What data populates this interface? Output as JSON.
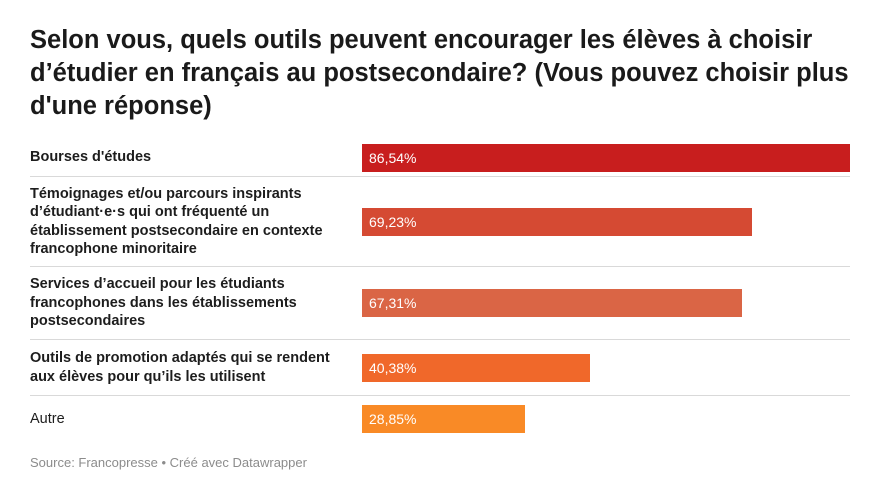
{
  "title": "Selon vous, quels outils peuvent encourager les élèves à choisir d’étudier en français au postsecondaire? (Vous pouvez choisir plus d'une réponse)",
  "footer": "Source: Francopresse • Créé avec Datawrapper",
  "chart_data": {
    "type": "bar",
    "orientation": "horizontal",
    "title": "Selon vous, quels outils peuvent encourager les élèves à choisir d’étudier en français au postsecondaire? (Vous pouvez choisir plus d'une réponse)",
    "categories": [
      "Bourses d'études",
      "Témoignages et/ou parcours inspirants d’étudiant·e·s qui ont fréquenté un établissement postsecondaire en contexte francophone minoritaire",
      "Services d’accueil pour les étudiants francophones dans les établissements postsecondaires",
      "Outils de promotion adaptés qui se rendent aux élèves pour qu’ils les utilisent",
      "Autre"
    ],
    "values": [
      86.54,
      69.23,
      67.31,
      40.38,
      28.85
    ],
    "value_labels": [
      "86,54%",
      "69,23%",
      "67,31%",
      "40,38%",
      "28,85%"
    ],
    "bar_colors": [
      "#c81e1e",
      "#d54a33",
      "#da6545",
      "#f0682a",
      "#f98a26"
    ],
    "bold_labels": [
      true,
      true,
      true,
      true,
      false
    ],
    "xlim": [
      0,
      86.54
    ],
    "grid": false,
    "legend": "none"
  }
}
